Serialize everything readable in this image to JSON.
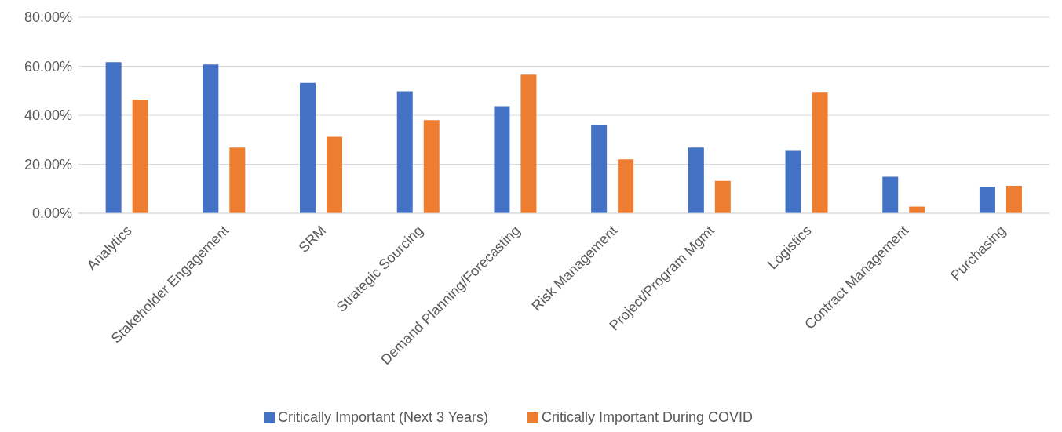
{
  "chart_data": {
    "type": "bar",
    "categories": [
      "Analytics",
      "Stakeholder Engagement",
      "SRM",
      "Strategic Sourcing",
      "Demand Planning/Forecasting",
      "Risk Management",
      "Project/Program Mgmt",
      "Logistics",
      "Contract Management",
      "Purchasing"
    ],
    "series": [
      {
        "name": "Critically Important (Next 3 Years)",
        "color": "#4472c4",
        "values": [
          61.7,
          60.7,
          53.2,
          49.8,
          43.7,
          35.9,
          26.8,
          25.8,
          14.9,
          10.8
        ]
      },
      {
        "name": "Critically Important During COVID",
        "color": "#ed7d31",
        "values": [
          46.4,
          26.8,
          31.2,
          38.0,
          56.6,
          22.0,
          13.2,
          49.5,
          2.7,
          11.2
        ]
      }
    ],
    "ylim": [
      0,
      80
    ],
    "yticks": [
      {
        "value": 0,
        "label": "0.00%"
      },
      {
        "value": 20,
        "label": "20.00%"
      },
      {
        "value": 40,
        "label": "40.00%"
      },
      {
        "value": 60,
        "label": "60.00%"
      },
      {
        "value": 80,
        "label": "80.00%"
      }
    ],
    "grid": "y",
    "legend": "bottom"
  }
}
